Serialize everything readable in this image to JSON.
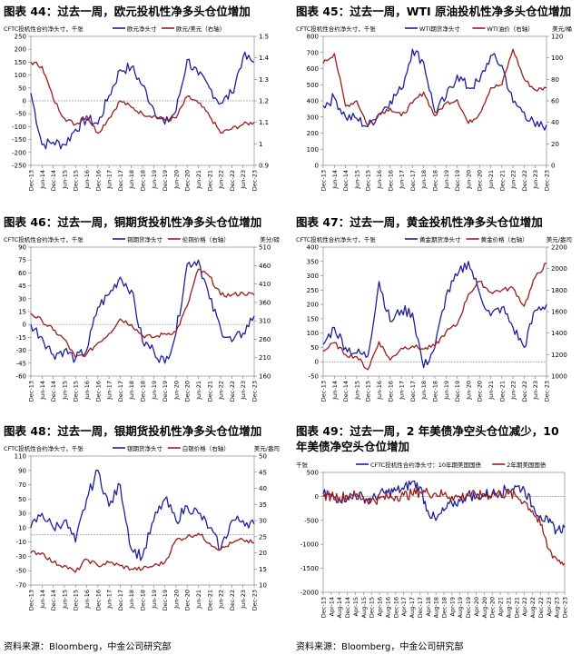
{
  "footer": {
    "source_left": "资料来源：Bloomberg，中金公司研究部",
    "source_right": "资料来源：Bloomberg，中金公司研究部"
  },
  "chart_data": [
    {
      "type": "line",
      "title": "图表 44：过去一周，欧元投机性净多头仓位增加",
      "unit_left": "CFTC投机性合约净头寸，千张",
      "unit_right": "",
      "x": [
        "Dec-13",
        "Jun-14",
        "Dec-14",
        "Jun-15",
        "Dec-15",
        "Jun-16",
        "Dec-16",
        "Jun-17",
        "Dec-17",
        "Jun-18",
        "Dec-18",
        "Jun-19",
        "Dec-19",
        "Jun-20",
        "Dec-20",
        "Jun-21",
        "Dec-21",
        "Jun-22",
        "Dec-22",
        "Jun-23",
        "Dec-23"
      ],
      "ylim_left": [
        -250,
        250
      ],
      "yticks_left": [
        -250,
        -200,
        -150,
        -100,
        -50,
        0,
        50,
        100,
        150,
        200,
        250
      ],
      "ylim_right": [
        0.9,
        1.5
      ],
      "yticks_right": [
        "0.9",
        "1",
        "1.1",
        "1.2",
        "1.3",
        "1.4",
        "1.5"
      ],
      "series": [
        {
          "name": "欧元净头寸",
          "axis": "left",
          "color": "#1f1f9c",
          "values": [
            30,
            -170,
            -160,
            -170,
            -110,
            -70,
            -90,
            20,
            120,
            130,
            60,
            -30,
            -90,
            -40,
            160,
            100,
            50,
            -10,
            30,
            170,
            150
          ]
        },
        {
          "name": "欧元/美元（右轴）",
          "axis": "right",
          "color": "#9c1c1c",
          "values": [
            1.38,
            1.36,
            1.21,
            1.12,
            1.09,
            1.13,
            1.05,
            1.12,
            1.2,
            1.17,
            1.14,
            1.13,
            1.11,
            1.12,
            1.22,
            1.19,
            1.13,
            1.05,
            1.07,
            1.09,
            1.1
          ]
        }
      ]
    },
    {
      "type": "line",
      "title": "图表 45：过去一周，WTI 原油投机性净多头仓位增加",
      "unit_left": "CFTC投机性合约净头寸，千张",
      "unit_right": "美元/桶",
      "x": [
        "Dec-13",
        "Jun-14",
        "Dec-14",
        "Jun-15",
        "Dec-15",
        "Jun-16",
        "Dec-16",
        "Jun-17",
        "Dec-17",
        "Jun-18",
        "Dec-18",
        "Jun-19",
        "Dec-19",
        "Jun-20",
        "Dec-20",
        "Jun-21",
        "Dec-21",
        "Jun-22",
        "Dec-22",
        "Jun-23",
        "Dec-23"
      ],
      "ylim_left": [
        0,
        800
      ],
      "yticks_left": [
        0,
        100,
        200,
        300,
        400,
        500,
        600,
        700,
        800
      ],
      "ylim_right": [
        0,
        120
      ],
      "yticks_right": [
        "0",
        "20",
        "40",
        "60",
        "80",
        "100",
        "120"
      ],
      "series": [
        {
          "name": "WTI期货净头寸",
          "axis": "left",
          "color": "#1f1f9c",
          "values": [
            370,
            420,
            300,
            290,
            240,
            320,
            400,
            470,
            720,
            640,
            330,
            420,
            560,
            480,
            520,
            680,
            620,
            390,
            330,
            240,
            250
          ]
        },
        {
          "name": "WTI油价（右轴）",
          "axis": "right",
          "color": "#9c1c1c",
          "values": [
            95,
            104,
            55,
            60,
            37,
            48,
            53,
            46,
            58,
            68,
            46,
            58,
            61,
            39,
            48,
            72,
            75,
            108,
            80,
            70,
            72
          ]
        }
      ]
    },
    {
      "type": "line",
      "title": "图表 46：过去一周，铜期货投机性净多头仓位增加",
      "unit_left": "CFTC投机性合约净头寸，千张",
      "unit_right": "美分/磅",
      "x": [
        "Dec-13",
        "Jun-14",
        "Dec-14",
        "Jun-15",
        "Dec-15",
        "Jun-16",
        "Dec-16",
        "Jun-17",
        "Dec-17",
        "Jun-18",
        "Dec-18",
        "Jun-19",
        "Dec-19",
        "Jun-20",
        "Dec-20",
        "Jun-21",
        "Dec-21",
        "Jun-22",
        "Dec-22",
        "Jun-23",
        "Dec-23"
      ],
      "ylim_left": [
        -60,
        90
      ],
      "yticks_left": [
        -60,
        -45,
        -30,
        -15,
        0,
        15,
        30,
        45,
        60,
        75,
        90
      ],
      "ylim_right": [
        160,
        510
      ],
      "yticks_right": [
        "160",
        "210",
        "260",
        "310",
        "360",
        "410",
        "460",
        "510"
      ],
      "series": [
        {
          "name": "铜期货净头寸",
          "axis": "left",
          "color": "#1f1f9c",
          "values": [
            0,
            -15,
            -35,
            -30,
            -40,
            -30,
            20,
            35,
            55,
            40,
            -20,
            -30,
            -45,
            -10,
            70,
            75,
            30,
            -5,
            -20,
            -10,
            10
          ]
        },
        {
          "name": "伦铜价格（右轴）",
          "axis": "right",
          "color": "#9c1c1c",
          "values": [
            330,
            310,
            285,
            260,
            210,
            220,
            250,
            275,
            315,
            300,
            270,
            265,
            275,
            280,
            350,
            450,
            430,
            380,
            380,
            385,
            380
          ]
        }
      ]
    },
    {
      "type": "line",
      "title": "图表 47：过去一周，黄金投机性净多头仓位增加",
      "unit_left": "CFTC投机性合约净头寸，千张",
      "unit_right": "美元/盎司",
      "x": [
        "Dec-13",
        "Jun-14",
        "Dec-14",
        "Jun-15",
        "Dec-15",
        "Jun-16",
        "Dec-16",
        "Jun-17",
        "Dec-17",
        "Jun-18",
        "Dec-18",
        "Jun-19",
        "Dec-19",
        "Jun-20",
        "Dec-20",
        "Jun-21",
        "Dec-21",
        "Jun-22",
        "Dec-22",
        "Jun-23",
        "Dec-23"
      ],
      "ylim_left": [
        -50,
        400
      ],
      "yticks_left": [
        -50,
        0,
        50,
        100,
        150,
        200,
        250,
        300,
        350,
        400
      ],
      "ylim_right": [
        1000,
        2200
      ],
      "yticks_right": [
        "1000",
        "1200",
        "1400",
        "1600",
        "1800",
        "2000",
        "2200"
      ],
      "series": [
        {
          "name": "黄金期货净头寸",
          "axis": "left",
          "color": "#1f1f9c",
          "values": [
            60,
            120,
            50,
            30,
            20,
            280,
            140,
            180,
            170,
            -20,
            50,
            230,
            300,
            350,
            240,
            160,
            190,
            120,
            50,
            180,
            200
          ]
        },
        {
          "name": "黄金价格（右轴）",
          "axis": "right",
          "color": "#9c1c1c",
          "values": [
            1230,
            1310,
            1200,
            1180,
            1060,
            1320,
            1150,
            1260,
            1280,
            1250,
            1280,
            1410,
            1480,
            1760,
            1880,
            1780,
            1800,
            1820,
            1650,
            1920,
            2050
          ]
        }
      ]
    },
    {
      "type": "line",
      "title": "图表 48：过去一周，银期货投机性净多头仓位增加",
      "unit_left": "CFTC投机性合约净头寸，千张",
      "unit_right": "美元/盎司",
      "x": [
        "Dec-13",
        "Jun-14",
        "Dec-14",
        "Jun-15",
        "Dec-15",
        "Jun-16",
        "Dec-16",
        "Jun-17",
        "Dec-17",
        "Jun-18",
        "Dec-18",
        "Jun-19",
        "Dec-19",
        "Jun-20",
        "Dec-20",
        "Jun-21",
        "Dec-21",
        "Jun-22",
        "Dec-22",
        "Jun-23",
        "Dec-23"
      ],
      "ylim_left": [
        -70,
        110
      ],
      "yticks_left": [
        -70,
        -50,
        -30,
        -10,
        10,
        30,
        50,
        70,
        90,
        110
      ],
      "ylim_right": [
        10,
        50
      ],
      "yticks_right": [
        "10",
        "15",
        "20",
        "25",
        "30",
        "35",
        "40",
        "45",
        "50"
      ],
      "series": [
        {
          "name": "银期货净头寸",
          "axis": "left",
          "color": "#1f1f9c",
          "values": [
            10,
            30,
            10,
            20,
            -10,
            50,
            90,
            40,
            70,
            -20,
            -30,
            20,
            50,
            20,
            40,
            30,
            10,
            -20,
            20,
            20,
            15
          ]
        },
        {
          "name": "白银价格（右轴）",
          "axis": "right",
          "color": "#9c1c1c",
          "values": [
            20,
            20,
            17,
            16,
            14,
            18,
            16,
            17,
            16,
            15,
            15,
            16,
            17,
            24,
            25,
            26,
            23,
            21,
            23,
            24,
            23
          ]
        }
      ]
    },
    {
      "type": "line",
      "title": "图表 49：过去一周，2 年美债净空头仓位减少，10 年美债净空头仓位增加",
      "unit_left": "千张",
      "unit_right": "",
      "x": [
        "Dec-13",
        "Apr-14",
        "Aug-14",
        "Dec-14",
        "Apr-15",
        "Aug-15",
        "Dec-15",
        "Apr-16",
        "Aug-16",
        "Dec-16",
        "Apr-17",
        "Aug-17",
        "Dec-17",
        "Apr-18",
        "Aug-18",
        "Dec-18",
        "Apr-19",
        "Aug-19",
        "Dec-19",
        "Apr-20",
        "Aug-20",
        "Dec-20",
        "Apr-21",
        "Aug-21",
        "Dec-21",
        "Apr-22",
        "Aug-22",
        "Dec-22",
        "Apr-23",
        "Aug-23",
        "Dec-23"
      ],
      "ylim_left": [
        -2000,
        500
      ],
      "yticks_left": [
        -2000,
        -1500,
        -1000,
        -500,
        0,
        500
      ],
      "series": [
        {
          "name": "CFTC投机性合约净头寸：10年期美国国债",
          "axis": "left",
          "color": "#1f1f9c",
          "values": [
            50,
            0,
            -50,
            -20,
            30,
            -20,
            -80,
            50,
            80,
            120,
            150,
            300,
            200,
            -300,
            -500,
            -300,
            -150,
            -100,
            50,
            -20,
            50,
            60,
            100,
            150,
            200,
            150,
            -200,
            -400,
            -550,
            -700,
            -650
          ]
        },
        {
          "name": "2年期美国国债",
          "axis": "left",
          "color": "#9c1c1c",
          "values": [
            0,
            20,
            -20,
            10,
            20,
            -40,
            -80,
            -50,
            -20,
            0,
            20,
            50,
            100,
            80,
            60,
            40,
            0,
            -20,
            30,
            10,
            20,
            40,
            60,
            50,
            0,
            -100,
            -300,
            -600,
            -1100,
            -1300,
            -1400
          ]
        }
      ]
    }
  ]
}
